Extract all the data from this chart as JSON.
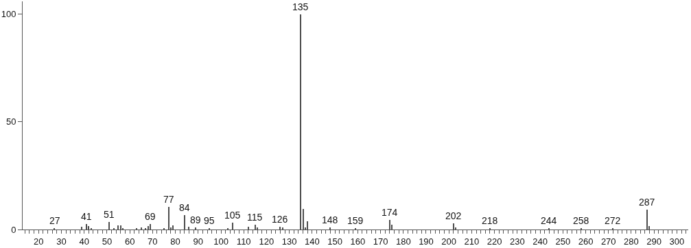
{
  "chart_data": {
    "type": "bar",
    "color": "#4d4d4d",
    "x": [
      27,
      39,
      41,
      42,
      43,
      51,
      53,
      55,
      56,
      57,
      63,
      65,
      67,
      68,
      69,
      75,
      77,
      78,
      79,
      84,
      86,
      89,
      95,
      103,
      105,
      112,
      115,
      116,
      126,
      127,
      135,
      136,
      137,
      138,
      148,
      159,
      174,
      175,
      202,
      203,
      218,
      244,
      258,
      272,
      287,
      288
    ],
    "values": [
      0.5,
      1.3,
      2.6,
      1.6,
      0.6,
      3.4,
      0.6,
      1.8,
      1.8,
      0.6,
      0.6,
      1.0,
      0.6,
      1.5,
      2.6,
      0.6,
      10.5,
      1.0,
      2.0,
      6.8,
      1.2,
      0.8,
      0.5,
      0.6,
      3.1,
      1.3,
      2.3,
      1.0,
      1.3,
      1.0,
      100,
      9.4,
      1.0,
      3.7,
      1.0,
      0.5,
      4.4,
      2.3,
      2.8,
      0.8,
      0.5,
      0.5,
      0.5,
      0.5,
      9.2,
      1.6
    ],
    "annotations": [
      {
        "text": "27",
        "x": 27,
        "y": 0.5
      },
      {
        "text": "41",
        "x": 41,
        "y": 2.6
      },
      {
        "text": "51",
        "x": 51,
        "y": 3.4
      },
      {
        "text": "69",
        "x": 69,
        "y": 2.6
      },
      {
        "text": "77",
        "x": 77,
        "y": 10.5
      },
      {
        "text": "84",
        "x": 84,
        "y": 6.8
      },
      {
        "text": "89",
        "x": 89,
        "y": 0.8
      },
      {
        "text": "95",
        "x": 95,
        "y": 0.5
      },
      {
        "text": "105",
        "x": 105,
        "y": 3.1
      },
      {
        "text": "115",
        "x": 115,
        "y": 2.3
      },
      {
        "text": "126",
        "x": 126,
        "y": 1.3
      },
      {
        "text": "135",
        "x": 135,
        "y": 100
      },
      {
        "text": "148",
        "x": 148,
        "y": 1.0
      },
      {
        "text": "159",
        "x": 159,
        "y": 0.5
      },
      {
        "text": "174",
        "x": 174,
        "y": 4.4
      },
      {
        "text": "202",
        "x": 202,
        "y": 2.8
      },
      {
        "text": "218",
        "x": 218,
        "y": 0.5
      },
      {
        "text": "244",
        "x": 244,
        "y": 0.5
      },
      {
        "text": "258",
        "x": 258,
        "y": 0.5
      },
      {
        "text": "272",
        "x": 272,
        "y": 0.5
      },
      {
        "text": "287",
        "x": 287,
        "y": 9.2
      }
    ],
    "xlim": [
      13,
      305
    ],
    "xticks": [
      {
        "value": 14,
        "label": null
      },
      {
        "value": 16,
        "label": null
      },
      {
        "value": 18,
        "label": null
      },
      20,
      {
        "value": 22,
        "label": null
      },
      {
        "value": 24,
        "label": null
      },
      {
        "value": 26,
        "label": null
      },
      {
        "value": 28,
        "label": null
      },
      30,
      {
        "value": 32,
        "label": null
      },
      {
        "value": 34,
        "label": null
      },
      {
        "value": 36,
        "label": null
      },
      {
        "value": 38,
        "label": null
      },
      40,
      {
        "value": 42,
        "label": null
      },
      {
        "value": 44,
        "label": null
      },
      {
        "value": 46,
        "label": null
      },
      {
        "value": 48,
        "label": null
      },
      50,
      {
        "value": 52,
        "label": null
      },
      {
        "value": 54,
        "label": null
      },
      {
        "value": 56,
        "label": null
      },
      {
        "value": 58,
        "label": null
      },
      60,
      {
        "value": 62,
        "label": null
      },
      {
        "value": 64,
        "label": null
      },
      {
        "value": 66,
        "label": null
      },
      {
        "value": 68,
        "label": null
      },
      70,
      {
        "value": 72,
        "label": null
      },
      {
        "value": 74,
        "label": null
      },
      {
        "value": 76,
        "label": null
      },
      {
        "value": 78,
        "label": null
      },
      80,
      {
        "value": 82,
        "label": null
      },
      {
        "value": 84,
        "label": null
      },
      {
        "value": 86,
        "label": null
      },
      {
        "value": 88,
        "label": null
      },
      90,
      {
        "value": 92,
        "label": null
      },
      {
        "value": 94,
        "label": null
      },
      {
        "value": 96,
        "label": null
      },
      {
        "value": 98,
        "label": null
      },
      100,
      {
        "value": 102,
        "label": null
      },
      {
        "value": 104,
        "label": null
      },
      {
        "value": 106,
        "label": null
      },
      {
        "value": 108,
        "label": null
      },
      110,
      {
        "value": 112,
        "label": null
      },
      {
        "value": 114,
        "label": null
      },
      {
        "value": 116,
        "label": null
      },
      {
        "value": 118,
        "label": null
      },
      120,
      {
        "value": 122,
        "label": null
      },
      {
        "value": 124,
        "label": null
      },
      {
        "value": 126,
        "label": null
      },
      {
        "value": 128,
        "label": null
      },
      130,
      {
        "value": 132,
        "label": null
      },
      {
        "value": 134,
        "label": null
      },
      {
        "value": 136,
        "label": null
      },
      {
        "value": 138,
        "label": null
      },
      140,
      {
        "value": 142,
        "label": null
      },
      {
        "value": 144,
        "label": null
      },
      {
        "value": 146,
        "label": null
      },
      {
        "value": 148,
        "label": null
      },
      150,
      {
        "value": 152,
        "label": null
      },
      {
        "value": 154,
        "label": null
      },
      {
        "value": 156,
        "label": null
      },
      {
        "value": 158,
        "label": null
      },
      160,
      {
        "value": 162,
        "label": null
      },
      {
        "value": 164,
        "label": null
      },
      {
        "value": 166,
        "label": null
      },
      {
        "value": 168,
        "label": null
      },
      170,
      {
        "value": 172,
        "label": null
      },
      {
        "value": 174,
        "label": null
      },
      {
        "value": 176,
        "label": null
      },
      {
        "value": 178,
        "label": null
      },
      180,
      {
        "value": 182,
        "label": null
      },
      {
        "value": 184,
        "label": null
      },
      {
        "value": 186,
        "label": null
      },
      {
        "value": 188,
        "label": null
      },
      190,
      {
        "value": 192,
        "label": null
      },
      {
        "value": 194,
        "label": null
      },
      {
        "value": 196,
        "label": null
      },
      {
        "value": 198,
        "label": null
      },
      200,
      {
        "value": 202,
        "label": null
      },
      {
        "value": 204,
        "label": null
      },
      {
        "value": 206,
        "label": null
      },
      {
        "value": 208,
        "label": null
      },
      210,
      {
        "value": 212,
        "label": null
      },
      {
        "value": 214,
        "label": null
      },
      {
        "value": 216,
        "label": null
      },
      {
        "value": 218,
        "label": null
      },
      220,
      {
        "value": 222,
        "label": null
      },
      {
        "value": 224,
        "label": null
      },
      {
        "value": 226,
        "label": null
      },
      {
        "value": 228,
        "label": null
      },
      230,
      {
        "value": 232,
        "label": null
      },
      {
        "value": 234,
        "label": null
      },
      {
        "value": 236,
        "label": null
      },
      {
        "value": 238,
        "label": null
      },
      240,
      {
        "value": 242,
        "label": null
      },
      {
        "value": 244,
        "label": null
      },
      {
        "value": 246,
        "label": null
      },
      {
        "value": 248,
        "label": null
      },
      250,
      {
        "value": 252,
        "label": null
      },
      {
        "value": 254,
        "label": null
      },
      {
        "value": 256,
        "label": null
      },
      {
        "value": 258,
        "label": null
      },
      260,
      {
        "value": 262,
        "label": null
      },
      {
        "value": 264,
        "label": null
      },
      {
        "value": 266,
        "label": null
      },
      {
        "value": 268,
        "label": null
      },
      270,
      {
        "value": 272,
        "label": null
      },
      {
        "value": 274,
        "label": null
      },
      {
        "value": 276,
        "label": null
      },
      {
        "value": 278,
        "label": null
      },
      280,
      {
        "value": 282,
        "label": null
      },
      {
        "value": 284,
        "label": null
      },
      {
        "value": 286,
        "label": null
      },
      {
        "value": 288,
        "label": null
      },
      290,
      {
        "value": 292,
        "label": null
      },
      {
        "value": 294,
        "label": null
      },
      {
        "value": 296,
        "label": null
      },
      {
        "value": 298,
        "label": null
      },
      300,
      {
        "value": 302,
        "label": null
      },
      {
        "value": 304,
        "label": null
      }
    ],
    "ylim": [
      0,
      106
    ],
    "yticks": [
      0,
      50,
      100
    ]
  }
}
